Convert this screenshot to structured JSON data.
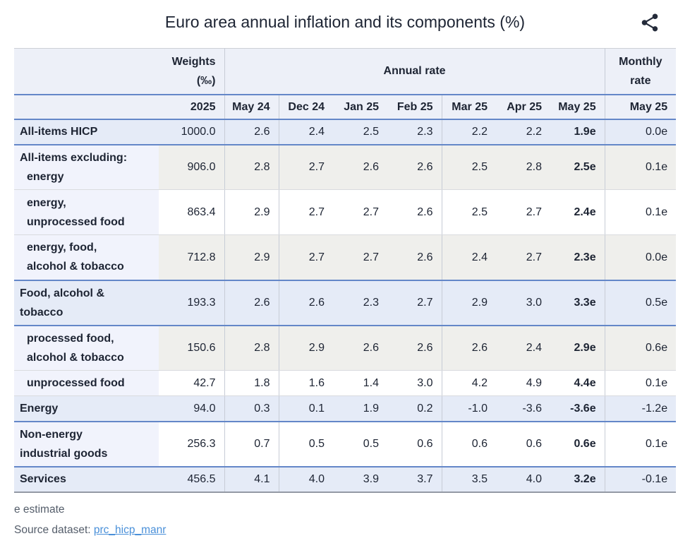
{
  "title": "Euro area annual inflation and its components (%)",
  "share_button": {
    "icon": "share-icon"
  },
  "colors": {
    "header_bg": "#edf0f8",
    "highlight_row_bg": "#e5ebf7",
    "stripe_gray_bg": "#efefec",
    "label_column_bg": "#f1f3fc",
    "section_border_blue": "#6487c8",
    "link_blue": "#4a90d9",
    "text": "#1d2433"
  },
  "chart_data": {
    "type": "table",
    "title": "Euro area annual inflation and its components (%)",
    "headers": {
      "weights_line1": "Weights",
      "weights_line2": "(‰)",
      "annual_rate": "Annual rate",
      "monthly_rate": "Monthly rate",
      "weights_year": "2025",
      "annual_months": [
        "May 24",
        "Dec 24",
        "Jan 25",
        "Feb 25",
        "Mar 25",
        "Apr 25",
        "May 25"
      ],
      "monthly_month": "May 25"
    },
    "rows": [
      {
        "label_lines": [
          {
            "text": "All-items HICP",
            "indent": false
          }
        ],
        "weight": "1000.0",
        "annual": [
          "2.6",
          "2.4",
          "2.5",
          "2.3",
          "2.2",
          "2.2",
          "1.9e"
        ],
        "monthly": "0.0e",
        "highlight": true,
        "section_end": true
      },
      {
        "label_lines": [
          {
            "text": "All-items excluding:",
            "indent": false
          },
          {
            "text": "energy",
            "indent": true
          }
        ],
        "weight": "906.0",
        "annual": [
          "2.8",
          "2.7",
          "2.6",
          "2.6",
          "2.5",
          "2.8",
          "2.5e"
        ],
        "monthly": "0.1e",
        "highlight": false,
        "section_end": false
      },
      {
        "label_lines": [
          {
            "text": "energy,",
            "indent": true
          },
          {
            "text": "unprocessed food",
            "indent": true
          }
        ],
        "weight": "863.4",
        "annual": [
          "2.9",
          "2.7",
          "2.7",
          "2.6",
          "2.5",
          "2.7",
          "2.4e"
        ],
        "monthly": "0.1e",
        "highlight": false,
        "section_end": false
      },
      {
        "label_lines": [
          {
            "text": "energy, food,",
            "indent": true
          },
          {
            "text": "alcohol & tobacco",
            "indent": true
          }
        ],
        "weight": "712.8",
        "annual": [
          "2.9",
          "2.7",
          "2.7",
          "2.6",
          "2.4",
          "2.7",
          "2.3e"
        ],
        "monthly": "0.0e",
        "highlight": false,
        "section_end": true
      },
      {
        "label_lines": [
          {
            "text": "Food, alcohol &",
            "indent": false
          },
          {
            "text": "tobacco",
            "indent": false
          }
        ],
        "weight": "193.3",
        "annual": [
          "2.6",
          "2.6",
          "2.3",
          "2.7",
          "2.9",
          "3.0",
          "3.3e"
        ],
        "monthly": "0.5e",
        "highlight": true,
        "section_end": true
      },
      {
        "label_lines": [
          {
            "text": "processed food,",
            "indent": true
          },
          {
            "text": "alcohol & tobacco",
            "indent": true
          }
        ],
        "weight": "150.6",
        "annual": [
          "2.8",
          "2.9",
          "2.6",
          "2.6",
          "2.6",
          "2.4",
          "2.9e"
        ],
        "monthly": "0.6e",
        "highlight": false,
        "section_end": false
      },
      {
        "label_lines": [
          {
            "text": "unprocessed food",
            "indent": true
          }
        ],
        "weight": "42.7",
        "annual": [
          "1.8",
          "1.6",
          "1.4",
          "3.0",
          "4.2",
          "4.9",
          "4.4e"
        ],
        "monthly": "0.1e",
        "highlight": false,
        "section_end": false
      },
      {
        "label_lines": [
          {
            "text": "Energy",
            "indent": false
          }
        ],
        "weight": "94.0",
        "annual": [
          "0.3",
          "0.1",
          "1.9",
          "0.2",
          "-1.0",
          "-3.6",
          "-3.6e"
        ],
        "monthly": "-1.2e",
        "highlight": true,
        "section_end": true
      },
      {
        "label_lines": [
          {
            "text": "Non-energy",
            "indent": false
          },
          {
            "text": "industrial goods",
            "indent": false
          }
        ],
        "weight": "256.3",
        "annual": [
          "0.7",
          "0.5",
          "0.5",
          "0.6",
          "0.6",
          "0.6",
          "0.6e"
        ],
        "monthly": "0.1e",
        "highlight": false,
        "section_end": true
      },
      {
        "label_lines": [
          {
            "text": "Services",
            "indent": false
          }
        ],
        "weight": "456.5",
        "annual": [
          "4.1",
          "4.0",
          "3.9",
          "3.7",
          "3.5",
          "4.0",
          "3.2e"
        ],
        "monthly": "-0.1e",
        "highlight": true,
        "section_end": false
      }
    ]
  },
  "footer": {
    "estimate_note": "e estimate",
    "source_label": "Source dataset:",
    "source_link": "prc_hicp_manr"
  }
}
